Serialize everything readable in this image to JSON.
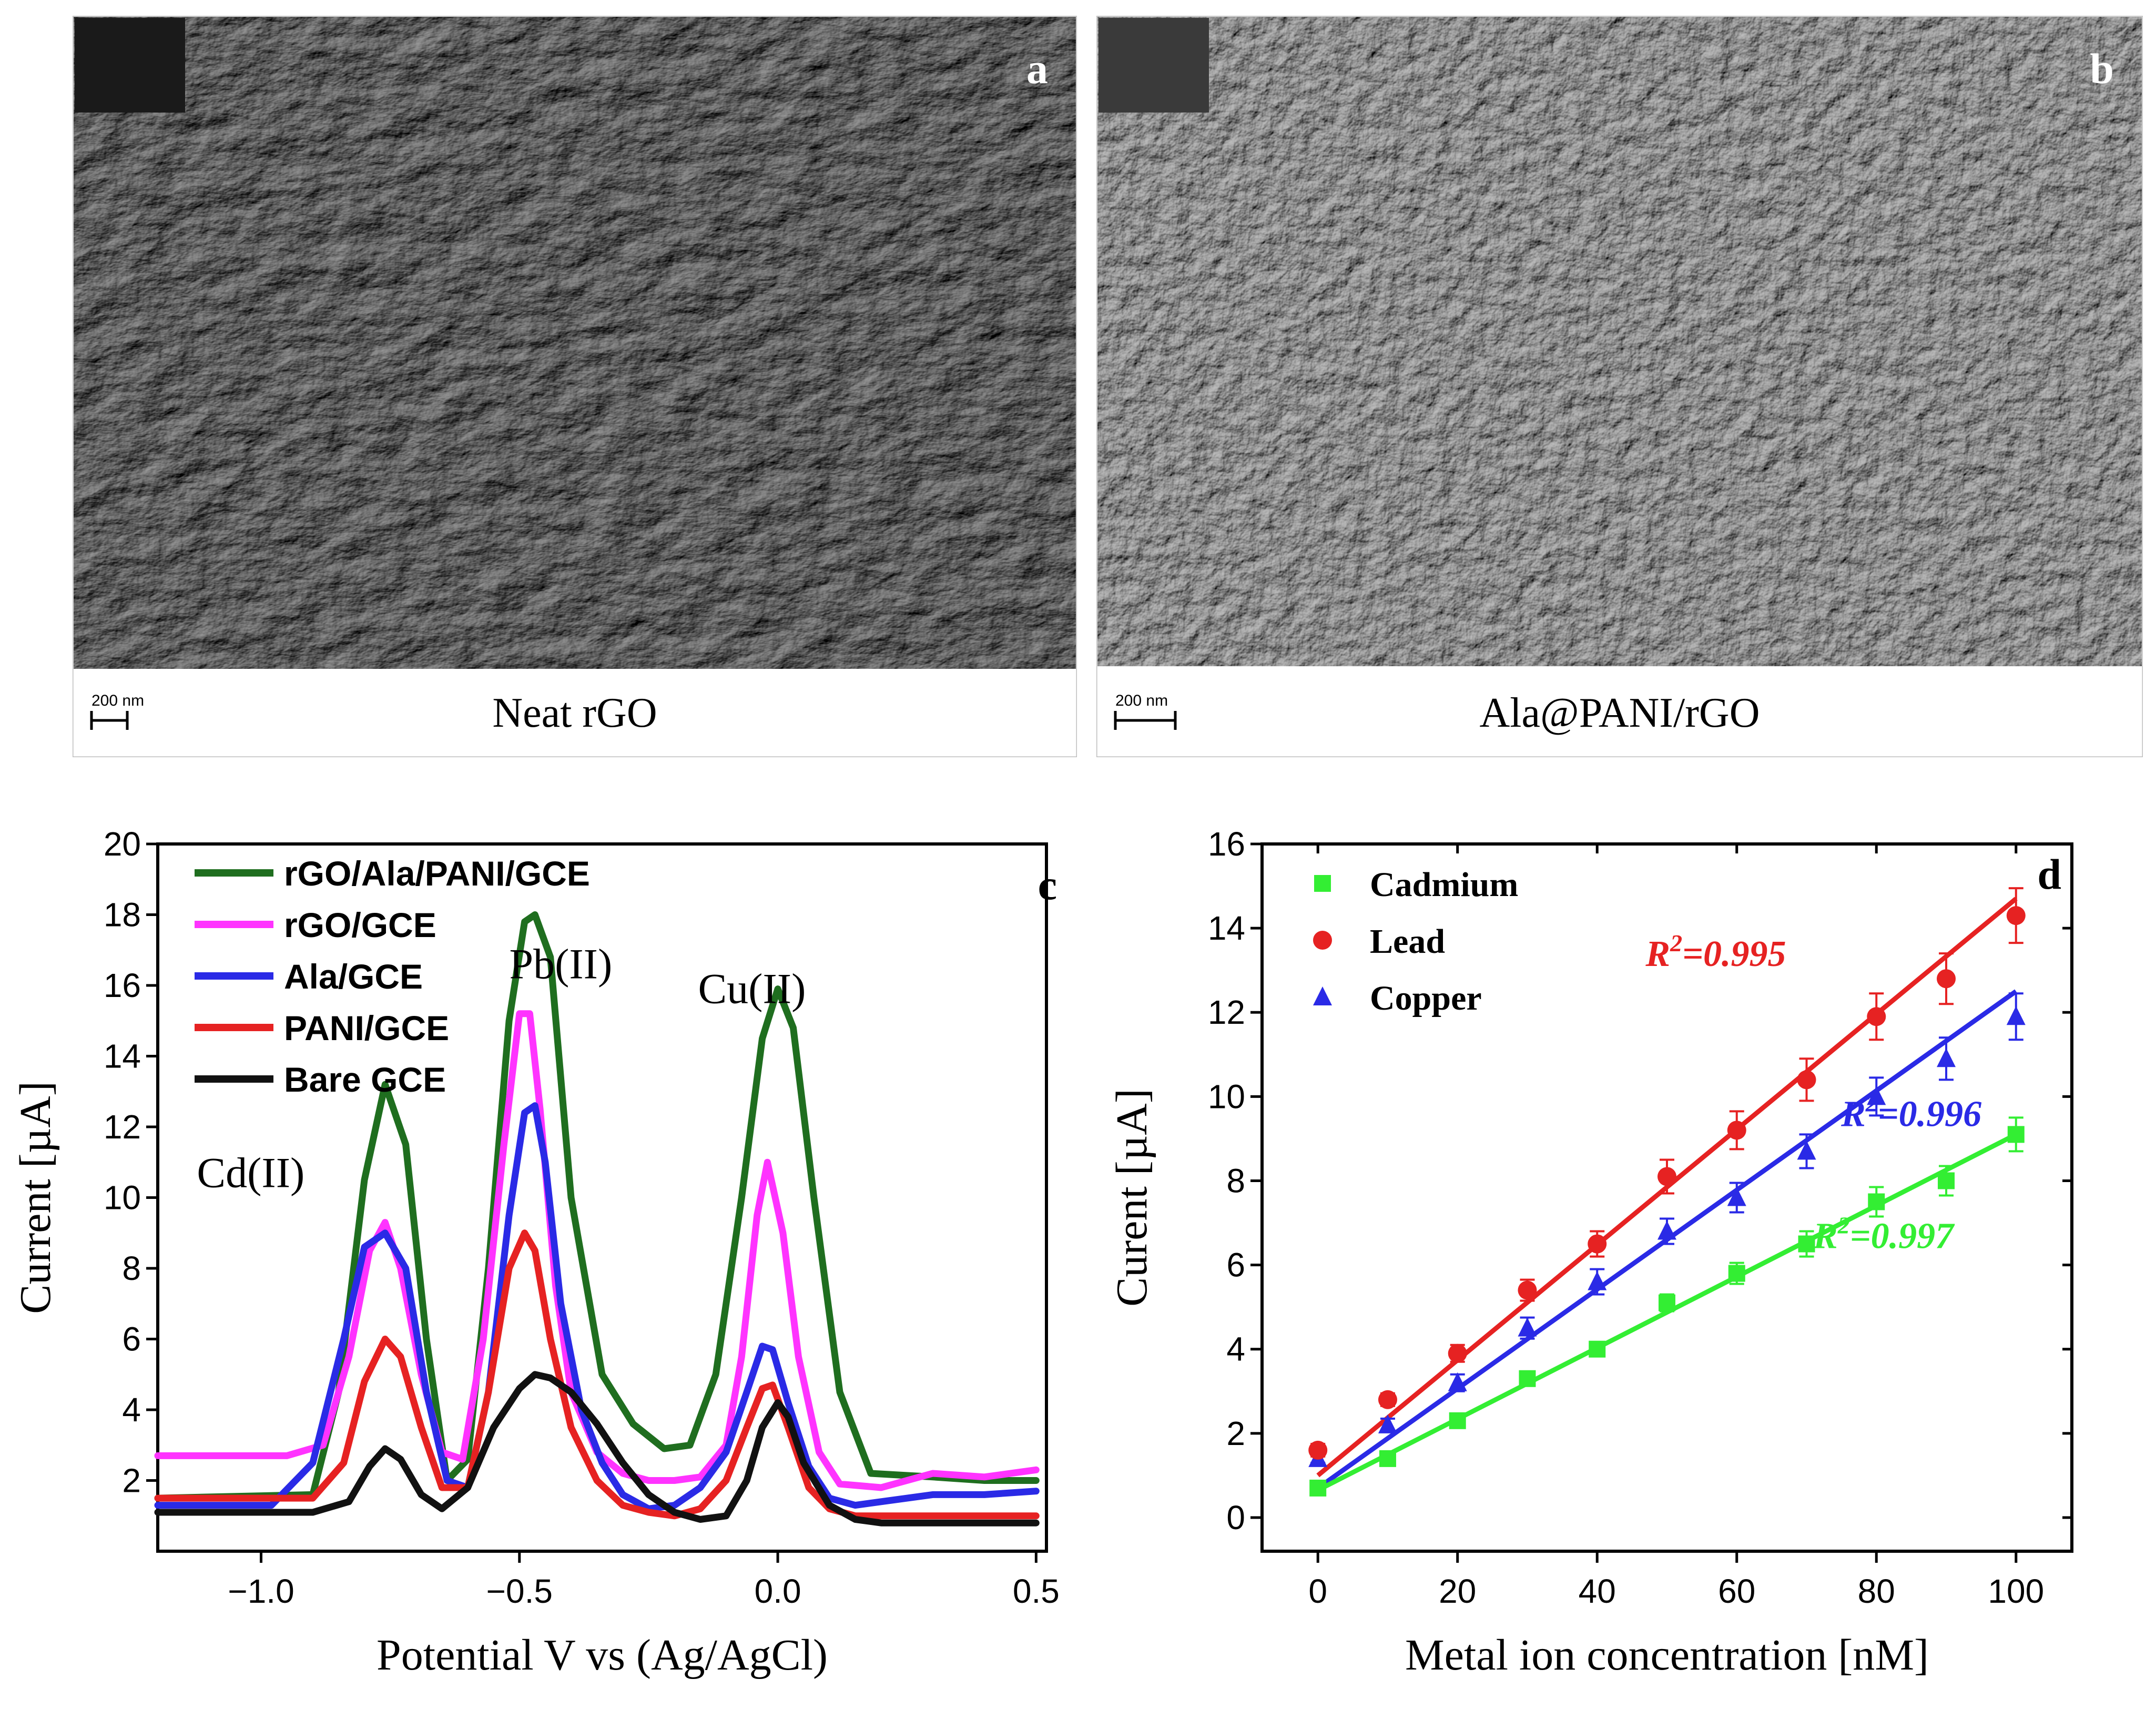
{
  "panels": {
    "a": {
      "letter": "a",
      "caption": "Neat rGO",
      "scalebar": "200 nm",
      "colors": {
        "bg": "#2e2e2e",
        "flake": "#8a8a8a"
      }
    },
    "b": {
      "letter": "b",
      "caption": "Ala@PANI/rGO",
      "scalebar": "200 nm",
      "colors": {
        "bg": "#3c3c3c",
        "grain": "#9a9a9a"
      }
    }
  },
  "chart_data": [
    {
      "panel": "c",
      "letter": "c",
      "type": "line",
      "xlabel": "Potential V vs (Ag/AgCl)",
      "ylabel": "Current [µA]",
      "xlim": [
        -1.2,
        0.52
      ],
      "ylim": [
        0,
        20
      ],
      "xticks": [
        -1.0,
        -0.5,
        0.0,
        0.5
      ],
      "xtick_labels": [
        "−1.0",
        "−0.5",
        "0.0",
        "0.5"
      ],
      "yticks": [
        2,
        4,
        6,
        8,
        10,
        12,
        14,
        16,
        18,
        20
      ],
      "ytick_labels": [
        "2",
        "4",
        "6",
        "8",
        "10",
        "12",
        "14",
        "16",
        "18",
        "20"
      ],
      "legend_position": "top-left",
      "annotations": [
        {
          "text": "Cd(II)",
          "x": -1.02,
          "y": 10.3
        },
        {
          "text": "Pb(II)",
          "x": -0.42,
          "y": 16.2
        },
        {
          "text": "Cu(II)",
          "x": -0.05,
          "y": 15.5
        }
      ],
      "series": [
        {
          "name": "rGO/Ala/PANI/GCE",
          "color": "#1f6e1f",
          "x": [
            -1.2,
            -0.9,
            -0.85,
            -0.8,
            -0.76,
            -0.72,
            -0.68,
            -0.64,
            -0.6,
            -0.56,
            -0.52,
            -0.49,
            -0.47,
            -0.44,
            -0.4,
            -0.34,
            -0.28,
            -0.22,
            -0.17,
            -0.12,
            -0.07,
            -0.03,
            0.0,
            0.03,
            0.07,
            0.12,
            0.18,
            0.3,
            0.4,
            0.5
          ],
          "y": [
            1.5,
            1.6,
            4.5,
            10.5,
            13.2,
            11.5,
            6.0,
            2.0,
            2.6,
            8.0,
            15.0,
            17.8,
            18.0,
            16.8,
            10.0,
            5.0,
            3.6,
            2.9,
            3.0,
            5.0,
            10.0,
            14.5,
            15.9,
            14.8,
            10.0,
            4.5,
            2.2,
            2.1,
            2.0,
            2.0
          ]
        },
        {
          "name": "rGO/GCE",
          "color": "#ff33ff",
          "x": [
            -1.2,
            -0.95,
            -0.88,
            -0.83,
            -0.79,
            -0.76,
            -0.73,
            -0.69,
            -0.65,
            -0.61,
            -0.57,
            -0.53,
            -0.5,
            -0.48,
            -0.46,
            -0.43,
            -0.4,
            -0.35,
            -0.3,
            -0.25,
            -0.2,
            -0.15,
            -0.1,
            -0.07,
            -0.04,
            -0.02,
            0.01,
            0.04,
            0.08,
            0.12,
            0.2,
            0.3,
            0.4,
            0.5
          ],
          "y": [
            2.7,
            2.7,
            3.0,
            5.5,
            8.5,
            9.3,
            8.0,
            5.0,
            2.8,
            2.6,
            6.0,
            11.5,
            15.2,
            15.2,
            12.5,
            7.5,
            4.5,
            2.8,
            2.2,
            2.0,
            2.0,
            2.1,
            3.0,
            5.5,
            9.5,
            11.0,
            9.0,
            5.5,
            2.8,
            1.9,
            1.8,
            2.2,
            2.1,
            2.3
          ]
        },
        {
          "name": "Ala/GCE",
          "color": "#2a2ae6",
          "x": [
            -1.2,
            -0.98,
            -0.9,
            -0.84,
            -0.8,
            -0.76,
            -0.72,
            -0.68,
            -0.64,
            -0.6,
            -0.56,
            -0.52,
            -0.49,
            -0.47,
            -0.45,
            -0.42,
            -0.38,
            -0.34,
            -0.3,
            -0.25,
            -0.2,
            -0.15,
            -0.1,
            -0.06,
            -0.03,
            -0.01,
            0.02,
            0.06,
            0.1,
            0.15,
            0.2,
            0.3,
            0.4,
            0.5
          ],
          "y": [
            1.3,
            1.3,
            2.5,
            6.0,
            8.6,
            9.0,
            8.0,
            4.5,
            2.0,
            1.8,
            4.5,
            9.5,
            12.4,
            12.6,
            11.0,
            7.0,
            4.0,
            2.5,
            1.6,
            1.2,
            1.3,
            1.8,
            2.8,
            4.5,
            5.8,
            5.7,
            4.2,
            2.4,
            1.5,
            1.3,
            1.4,
            1.6,
            1.6,
            1.7
          ]
        },
        {
          "name": "PANI/GCE",
          "color": "#e62222",
          "x": [
            -1.2,
            -0.9,
            -0.84,
            -0.8,
            -0.76,
            -0.73,
            -0.69,
            -0.65,
            -0.6,
            -0.56,
            -0.52,
            -0.49,
            -0.47,
            -0.44,
            -0.4,
            -0.35,
            -0.3,
            -0.25,
            -0.2,
            -0.15,
            -0.1,
            -0.06,
            -0.03,
            -0.01,
            0.02,
            0.06,
            0.1,
            0.15,
            0.3,
            0.5
          ],
          "y": [
            1.5,
            1.5,
            2.5,
            4.8,
            6.0,
            5.5,
            3.5,
            1.8,
            1.8,
            4.5,
            8.0,
            9.0,
            8.5,
            6.0,
            3.5,
            2.0,
            1.3,
            1.1,
            1.0,
            1.2,
            2.0,
            3.5,
            4.6,
            4.7,
            3.5,
            1.8,
            1.2,
            1.0,
            1.0,
            1.0
          ]
        },
        {
          "name": "Bare GCE",
          "color": "#111111",
          "x": [
            -1.2,
            -0.9,
            -0.83,
            -0.79,
            -0.76,
            -0.73,
            -0.69,
            -0.65,
            -0.6,
            -0.55,
            -0.5,
            -0.47,
            -0.44,
            -0.4,
            -0.35,
            -0.3,
            -0.25,
            -0.2,
            -0.15,
            -0.1,
            -0.06,
            -0.03,
            0.0,
            0.02,
            0.05,
            0.1,
            0.15,
            0.2,
            0.3,
            0.5
          ],
          "y": [
            1.1,
            1.1,
            1.4,
            2.4,
            2.9,
            2.6,
            1.6,
            1.2,
            1.8,
            3.5,
            4.6,
            5.0,
            4.9,
            4.5,
            3.6,
            2.5,
            1.6,
            1.1,
            0.9,
            1.0,
            2.0,
            3.5,
            4.2,
            3.8,
            2.5,
            1.3,
            0.9,
            0.8,
            0.8,
            0.8
          ]
        }
      ]
    },
    {
      "panel": "d",
      "letter": "d",
      "type": "scatter",
      "xlabel": "Metal ion concentration [nM]",
      "ylabel": "Curent [µA]",
      "xlim": [
        -8,
        108
      ],
      "ylim": [
        -0.8,
        16
      ],
      "xticks": [
        0,
        20,
        40,
        60,
        80,
        100
      ],
      "xtick_labels": [
        "0",
        "20",
        "40",
        "60",
        "80",
        "100"
      ],
      "yticks": [
        0,
        2,
        4,
        6,
        8,
        10,
        12,
        14,
        16
      ],
      "ytick_labels": [
        "0",
        "2",
        "4",
        "6",
        "8",
        "10",
        "12",
        "14",
        "16"
      ],
      "legend_position": "top-left",
      "series": [
        {
          "name": "Cadmium",
          "color": "#33ee33",
          "marker": "square",
          "x": [
            0,
            10,
            20,
            30,
            40,
            50,
            60,
            70,
            80,
            90,
            100
          ],
          "y": [
            0.7,
            1.4,
            2.3,
            3.3,
            4.0,
            5.1,
            5.8,
            6.5,
            7.5,
            8.0,
            9.1
          ],
          "err": [
            0.1,
            0.1,
            0.1,
            0.15,
            0.15,
            0.2,
            0.25,
            0.3,
            0.35,
            0.35,
            0.4
          ],
          "fit": {
            "x": [
              0,
              100
            ],
            "y": [
              0.65,
              9.1
            ]
          },
          "r2_label": "0.997",
          "r2_pos": {
            "x": 81,
            "y": 6.4
          }
        },
        {
          "name": "Lead",
          "color": "#e62222",
          "marker": "circle",
          "x": [
            0,
            10,
            20,
            30,
            40,
            50,
            60,
            70,
            80,
            90,
            100
          ],
          "y": [
            1.6,
            2.8,
            3.9,
            5.4,
            6.5,
            8.1,
            9.2,
            10.4,
            11.9,
            12.8,
            14.3
          ],
          "err": [
            0.15,
            0.15,
            0.2,
            0.25,
            0.3,
            0.4,
            0.45,
            0.5,
            0.55,
            0.6,
            0.65
          ],
          "fit": {
            "x": [
              0,
              100
            ],
            "y": [
              1.0,
              14.7
            ]
          },
          "r2_label": "0.995",
          "r2_pos": {
            "x": 57,
            "y": 13.1
          }
        },
        {
          "name": "Copper",
          "color": "#2a2ae6",
          "marker": "triangle",
          "x": [
            0,
            10,
            20,
            30,
            40,
            50,
            60,
            70,
            80,
            90,
            100
          ],
          "y": [
            1.4,
            2.2,
            3.2,
            4.5,
            5.6,
            6.8,
            7.6,
            8.7,
            10.0,
            10.9,
            11.9
          ],
          "err": [
            0.1,
            0.15,
            0.2,
            0.25,
            0.3,
            0.3,
            0.35,
            0.4,
            0.45,
            0.5,
            0.55
          ],
          "fit": {
            "x": [
              0,
              100
            ],
            "y": [
              0.7,
              12.5
            ]
          },
          "r2_label": "0.996",
          "r2_pos": {
            "x": 85,
            "y": 9.3
          }
        }
      ]
    }
  ]
}
